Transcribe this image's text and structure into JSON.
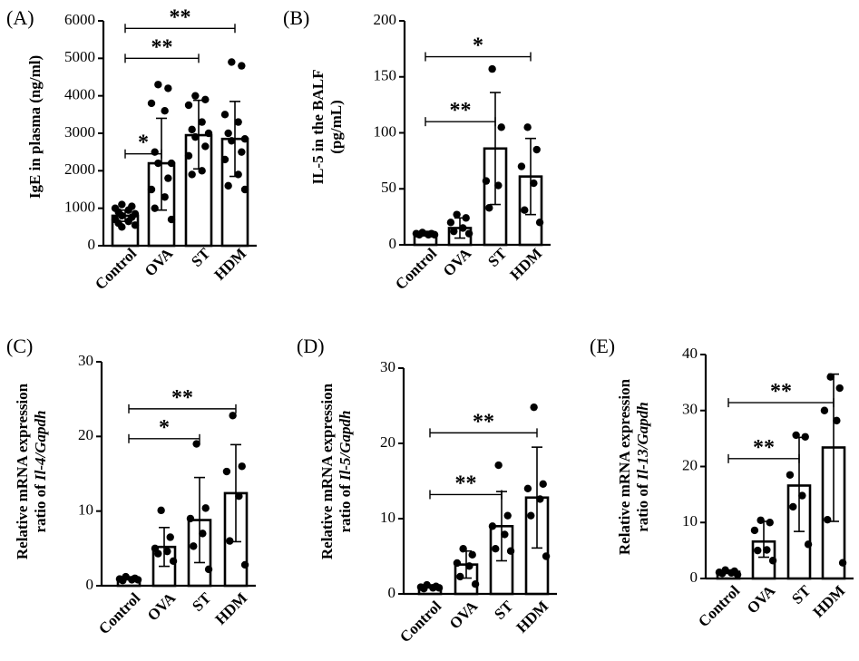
{
  "chart_data": [
    {
      "type": "bar",
      "panel": "(A)",
      "ylabel": [
        "IgE in plasma (ng/ml)"
      ],
      "categories": [
        "Control",
        "OVA",
        "ST",
        "HDM"
      ],
      "values": [
        800,
        2200,
        2950,
        2850
      ],
      "error": [
        [
          650,
          950
        ],
        [
          950,
          3400
        ],
        [
          2050,
          3880
        ],
        [
          1850,
          3850
        ]
      ],
      "points": [
        [
          1100,
          1050,
          1000,
          950,
          900,
          850,
          800,
          760,
          700,
          650,
          600,
          550,
          500
        ],
        [
          4300,
          4200,
          3800,
          3600,
          2500,
          2200,
          2200,
          1800,
          1500,
          1300,
          1000,
          700
        ],
        [
          4000,
          3900,
          3750,
          3300,
          3100,
          3000,
          2900,
          2650,
          2400,
          2000,
          1900
        ],
        [
          4900,
          4800,
          3500,
          3300,
          3000,
          2850,
          2800,
          2500,
          2300,
          1900,
          1600,
          1500
        ]
      ],
      "ylim": [
        0,
        6000
      ],
      "yticks": [
        0,
        1000,
        2000,
        3000,
        4000,
        5000,
        6000
      ],
      "significance": [
        {
          "from": 0,
          "to": 1,
          "y": 2450,
          "label": "*"
        },
        {
          "from": 0,
          "to": 2,
          "y": 5000,
          "label": "**"
        },
        {
          "from": 0,
          "to": 3,
          "y": 5800,
          "label": "**"
        }
      ]
    },
    {
      "type": "bar",
      "panel": "(B)",
      "ylabel": [
        "IL-5 in the BALF",
        "(pg/mL)"
      ],
      "categories": [
        "Control",
        "OVA",
        "ST",
        "HDM"
      ],
      "values": [
        10,
        15,
        86,
        61
      ],
      "error": [
        [
          8,
          12
        ],
        [
          6,
          24
        ],
        [
          36,
          136
        ],
        [
          27,
          95
        ]
      ],
      "points": [
        [
          11,
          10,
          10,
          9,
          9,
          9
        ],
        [
          27,
          24,
          20,
          15,
          12,
          10
        ],
        [
          157,
          105,
          57,
          53,
          33
        ],
        [
          105,
          85,
          70,
          55,
          31,
          20
        ]
      ],
      "ylim": [
        0,
        200
      ],
      "yticks": [
        0,
        50,
        100,
        150,
        200
      ],
      "significance": [
        {
          "from": 0,
          "to": 2,
          "y": 110,
          "label": "**"
        },
        {
          "from": 0,
          "to": 3,
          "y": 168,
          "label": "*"
        }
      ]
    },
    {
      "type": "bar",
      "panel": "(C)",
      "ylabel": [
        "Relative mRNA expression",
        "ratio of Il-4/Gapdh"
      ],
      "categories": [
        "Control",
        "OVA",
        "ST",
        "HDM"
      ],
      "values": [
        1,
        5.2,
        8.8,
        12.4
      ],
      "error": [
        [
          0.8,
          1.2
        ],
        [
          2.6,
          7.8
        ],
        [
          3.1,
          14.5
        ],
        [
          5.9,
          18.9
        ]
      ],
      "points": [
        [
          1.2,
          1.0,
          0.9,
          0.8,
          0.7,
          0.8
        ],
        [
          10.1,
          6.5,
          5.0,
          4.6,
          4.3,
          3.3
        ],
        [
          19.0,
          10.4,
          9.0,
          7.0,
          5.3,
          2.2
        ],
        [
          22.8,
          16.0,
          15.3,
          12.0,
          6.0,
          2.8
        ]
      ],
      "ylim": [
        0,
        30
      ],
      "yticks": [
        0,
        10,
        20,
        30
      ],
      "significance": [
        {
          "from": 0,
          "to": 2,
          "y": 19.7,
          "label": "*"
        },
        {
          "from": 0,
          "to": 3,
          "y": 23.7,
          "label": "**"
        }
      ]
    },
    {
      "type": "bar",
      "panel": "(D)",
      "ylabel": [
        "Relative mRNA expression",
        "ratio of Il-5/Gapdh"
      ],
      "categories": [
        "Control",
        "OVA",
        "ST",
        "HDM"
      ],
      "values": [
        1,
        3.9,
        9.0,
        12.8
      ],
      "error": [
        [
          0.8,
          1.2
        ],
        [
          2.1,
          5.7
        ],
        [
          4.4,
          13.6
        ],
        [
          6.1,
          19.5
        ]
      ],
      "points": [
        [
          1.2,
          1.0,
          0.9,
          0.8,
          0.7,
          0.8
        ],
        [
          6.0,
          5.2,
          4.1,
          3.7,
          2.3,
          1.3
        ],
        [
          17.1,
          10.4,
          9.0,
          7.9,
          6.0,
          5.7
        ],
        [
          24.8,
          14.6,
          14.0,
          12.6,
          10.4,
          5.0
        ]
      ],
      "ylim": [
        0,
        30
      ],
      "yticks": [
        0,
        10,
        20,
        30
      ],
      "significance": [
        {
          "from": 0,
          "to": 2,
          "y": 13.2,
          "label": "**"
        },
        {
          "from": 0,
          "to": 3,
          "y": 21.4,
          "label": "**"
        }
      ]
    },
    {
      "type": "bar",
      "panel": "(E)",
      "ylabel": [
        "Relative mRNA expression",
        "ratio of Il-13/Gapdh"
      ],
      "categories": [
        "Control",
        "OVA",
        "ST",
        "HDM"
      ],
      "values": [
        1.2,
        6.6,
        16.6,
        23.4
      ],
      "error": [
        [
          0.9,
          1.5
        ],
        [
          3.8,
          10.2
        ],
        [
          8.4,
          25.2
        ],
        [
          10.2,
          36.5
        ]
      ],
      "points": [
        [
          1.5,
          1.3,
          1.1,
          1.0,
          0.9,
          0.7
        ],
        [
          10.4,
          10.0,
          8.6,
          5.1,
          5.0,
          3.2
        ],
        [
          25.6,
          25.3,
          18.5,
          14.8,
          12.8,
          6.1
        ],
        [
          36.0,
          34.0,
          30.0,
          28.2,
          10.5,
          2.8
        ]
      ],
      "ylim": [
        0,
        40
      ],
      "yticks": [
        0,
        10,
        20,
        30,
        40
      ],
      "significance": [
        {
          "from": 0,
          "to": 2,
          "y": 21.4,
          "label": "**"
        },
        {
          "from": 0,
          "to": 3,
          "y": 31.4,
          "label": "**"
        }
      ]
    }
  ]
}
